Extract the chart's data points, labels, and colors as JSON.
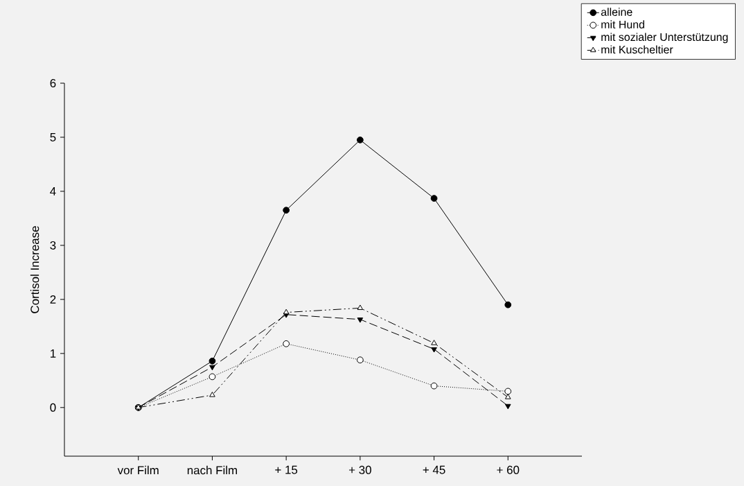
{
  "chart_data": {
    "type": "line",
    "ylabel": "Cortisol Increase",
    "categories": [
      "vor Film",
      "nach Film",
      "+ 15",
      "+ 30",
      "+ 45",
      "+ 60"
    ],
    "ylim": [
      -0.9,
      6
    ],
    "yticks": [
      0,
      1,
      2,
      3,
      4,
      5,
      6
    ],
    "grid": false,
    "legend": "top right",
    "series": [
      {
        "name": "alleine",
        "color": "#000000",
        "marker": "circle",
        "line_style": "solid",
        "values": [
          0,
          0.86,
          3.65,
          4.95,
          3.87,
          1.9
        ]
      },
      {
        "name": "mit Hund",
        "color": "#000000",
        "marker": "circle",
        "line_style": "dotted",
        "values": [
          0,
          0.57,
          1.18,
          0.88,
          0.4,
          0.3
        ]
      },
      {
        "name": "mit sozialer Unterstützung",
        "color": "#000000",
        "marker": "triangle",
        "line_style": "dashed",
        "values": [
          0,
          0.75,
          1.72,
          1.63,
          1.08,
          0.03
        ]
      },
      {
        "name": "mit Kuscheltier",
        "color": "#000000",
        "marker": "triangle",
        "line_style": "dashdotdotted",
        "values": [
          0,
          0.23,
          1.76,
          1.84,
          1.19,
          0.19
        ]
      }
    ]
  }
}
